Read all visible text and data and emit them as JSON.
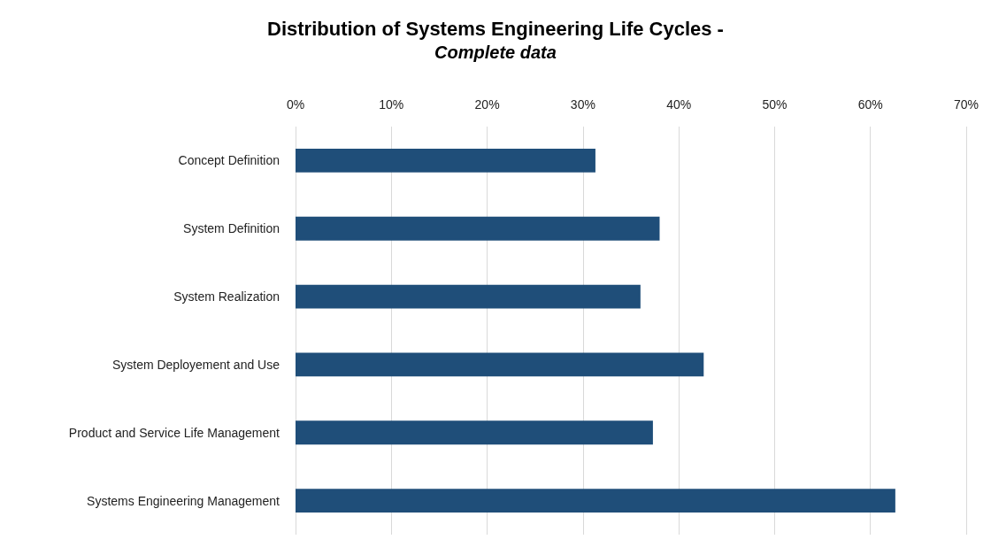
{
  "chart_data": {
    "type": "bar",
    "orientation": "horizontal",
    "title": "Distribution of Systems Engineering Life Cycles -",
    "subtitle": "Complete data",
    "categories": [
      "Concept Definition",
      "System Definition",
      "System Realization",
      "System Deployement and Use",
      "Product and Service Life Management",
      "Systems Engineering Management"
    ],
    "values": [
      31.3,
      38.0,
      36.0,
      42.6,
      37.3,
      62.6
    ],
    "color": "#1f4e79",
    "xlim": [
      0,
      70
    ],
    "xticks": [
      {
        "value": 0,
        "label": "0%"
      },
      {
        "value": 10,
        "label": "10%"
      },
      {
        "value": 20,
        "label": "20%"
      },
      {
        "value": 30,
        "label": "30%"
      },
      {
        "value": 40,
        "label": "40%"
      },
      {
        "value": 50,
        "label": "50%"
      },
      {
        "value": 60,
        "label": "60%"
      },
      {
        "value": 70,
        "label": "70%"
      }
    ],
    "grid": "x"
  }
}
